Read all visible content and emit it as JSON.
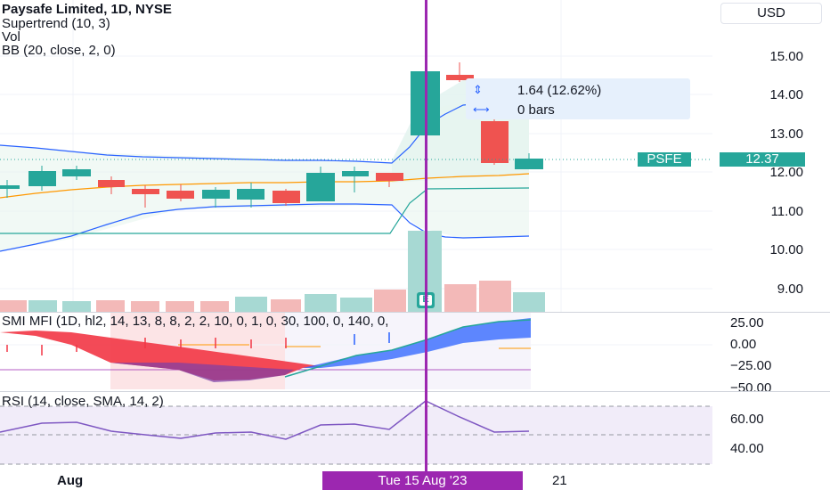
{
  "legend": {
    "title": "Paysafe Limited, 1D, NYSE",
    "supertrend": "Supertrend (10, 3)",
    "vol": "Vol",
    "bb": "BB (20, close, 2, 0)"
  },
  "currency": "USD",
  "price_ticks": [
    "15.00",
    "14.00",
    "13.00",
    "12.00",
    "11.00",
    "10.00",
    "9.00"
  ],
  "symbol_badge": {
    "symbol": "PSFE",
    "price": "12.37",
    "color": "#26a69a"
  },
  "measure": {
    "change": "1.64 (12.62%)",
    "bars": "0 bars"
  },
  "earnings_marker": "E",
  "smi": {
    "label": "SMI MFI (1D, hl2, 14, 13, 8, 8, 2, 2, 10, 0, 1, 0, 30, 100, 0, 140, 0,",
    "ticks": [
      "25.00",
      "0.00",
      "−25.00",
      "−50.00"
    ]
  },
  "rsi": {
    "label": "RSI (14, close, SMA, 14, 2)",
    "ticks": [
      "60.00",
      "40.00"
    ]
  },
  "time_axis": {
    "month_label": "Aug",
    "day_label": "21",
    "cursor_label": "Tue 15 Aug '23"
  },
  "colors": {
    "up": "#26a69a",
    "down": "#ef5350",
    "cursor": "#9c27b0",
    "bb_band": "#2962ff",
    "basis": "#ff9800"
  }
}
